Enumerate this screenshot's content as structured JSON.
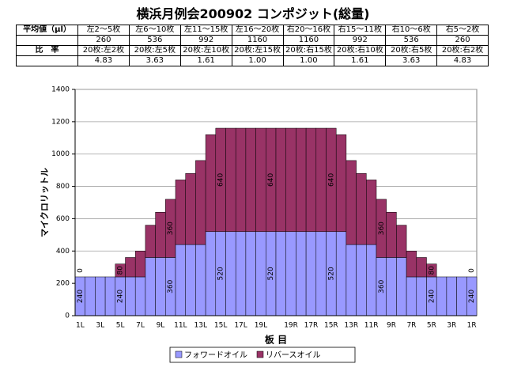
{
  "title": "横浜月例会200902 コンポジット(総量)",
  "table": {
    "rows": [
      {
        "label": "平均値（μl）",
        "cells": [
          "左2～5枚",
          "左6～10枚",
          "左11～15枚",
          "左16～20枚",
          "右20～16枚",
          "右15～11枚",
          "右10～6枚",
          "右5～2枚"
        ]
      },
      {
        "cells": [
          "260",
          "536",
          "992",
          "1160",
          "1160",
          "992",
          "536",
          "260"
        ]
      },
      {
        "label": "比　率",
        "cells": [
          "20枚:左2枚",
          "20枚:左5枚",
          "20枚:左10枚",
          "20枚:左15枚",
          "20枚:右15枚",
          "20枚:右10枚",
          "20枚:右5枚",
          "20枚:右2枚"
        ]
      },
      {
        "cells": [
          "4.83",
          "3.63",
          "1.61",
          "1.00",
          "1.00",
          "1.61",
          "3.63",
          "4.83"
        ]
      }
    ]
  },
  "chart_data": {
    "type": "stacked_bar",
    "x_label": "板 目",
    "y_label": "マイクロリットル",
    "categories": [
      "1L",
      null,
      "3L",
      null,
      "5L",
      null,
      "7L",
      null,
      "9L",
      null,
      "11L",
      null,
      "13L",
      null,
      "15L",
      null,
      "17L",
      null,
      "19L",
      null,
      null,
      "19R",
      null,
      "17R",
      null,
      "15R",
      null,
      "13R",
      null,
      "11R",
      null,
      "9R",
      null,
      "7R",
      null,
      "5R",
      null,
      "3R",
      null,
      "1R"
    ],
    "series": [
      {
        "name": "フォワードオイル",
        "color": "#9999ff",
        "values": [
          240,
          240,
          240,
          240,
          240,
          240,
          240,
          360,
          360,
          360,
          440,
          440,
          440,
          520,
          520,
          520,
          520,
          520,
          520,
          520,
          520,
          520,
          520,
          520,
          520,
          520,
          520,
          440,
          440,
          440,
          360,
          360,
          360,
          240,
          240,
          240,
          240,
          240,
          240,
          240
        ],
        "value_labels": [
          "240",
          null,
          null,
          null,
          "240",
          null,
          null,
          null,
          null,
          "360",
          null,
          null,
          null,
          null,
          "520",
          null,
          null,
          null,
          null,
          "520",
          null,
          null,
          null,
          null,
          null,
          "520",
          null,
          null,
          null,
          null,
          "360",
          null,
          null,
          null,
          null,
          "240",
          null,
          null,
          null,
          "240"
        ]
      },
      {
        "name": "リバースオイル",
        "color": "#993366",
        "values": [
          0,
          0,
          0,
          0,
          80,
          120,
          160,
          200,
          280,
          360,
          400,
          440,
          520,
          600,
          640,
          640,
          640,
          640,
          640,
          640,
          640,
          640,
          640,
          640,
          640,
          640,
          600,
          520,
          440,
          400,
          360,
          280,
          200,
          160,
          120,
          80,
          0,
          0,
          0,
          0
        ],
        "value_labels": [
          "0",
          null,
          null,
          null,
          "80",
          null,
          null,
          null,
          null,
          "360",
          null,
          null,
          null,
          null,
          "640",
          null,
          null,
          null,
          null,
          "640",
          null,
          null,
          null,
          null,
          null,
          "640",
          null,
          null,
          null,
          null,
          "360",
          null,
          null,
          null,
          null,
          "80",
          null,
          null,
          null,
          "0"
        ]
      }
    ],
    "ylim": [
      0,
      1400
    ],
    "yticks": [
      0,
      200,
      400,
      600,
      800,
      1000,
      1200,
      1400
    ],
    "grid": true,
    "legend": "bottom"
  }
}
